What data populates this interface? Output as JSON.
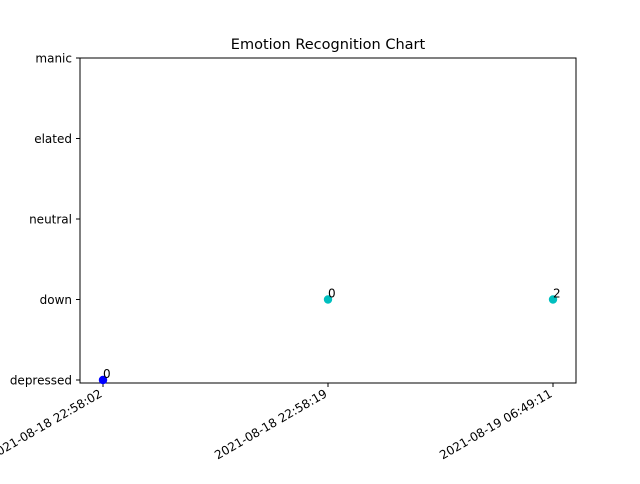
{
  "chart_data": {
    "type": "scatter",
    "title": "Emotion Recognition Chart",
    "xlabel": "",
    "ylabel": "",
    "x_categories": [
      "2021-08-18 22:58:02",
      "2021-08-18 22:58:19",
      "2021-08-19 06:49:11"
    ],
    "y_categories": [
      "depressed",
      "down",
      "neutral",
      "elated",
      "manic"
    ],
    "points": [
      {
        "x": "2021-08-18 22:58:02",
        "y": "depressed",
        "label": "0",
        "color": "#0000ff"
      },
      {
        "x": "2021-08-18 22:58:19",
        "y": "down",
        "label": "0",
        "color": "#00bfbf"
      },
      {
        "x": "2021-08-19 06:49:11",
        "y": "down",
        "label": "2",
        "color": "#00bfbf"
      }
    ],
    "grid": false,
    "legend": "none"
  }
}
